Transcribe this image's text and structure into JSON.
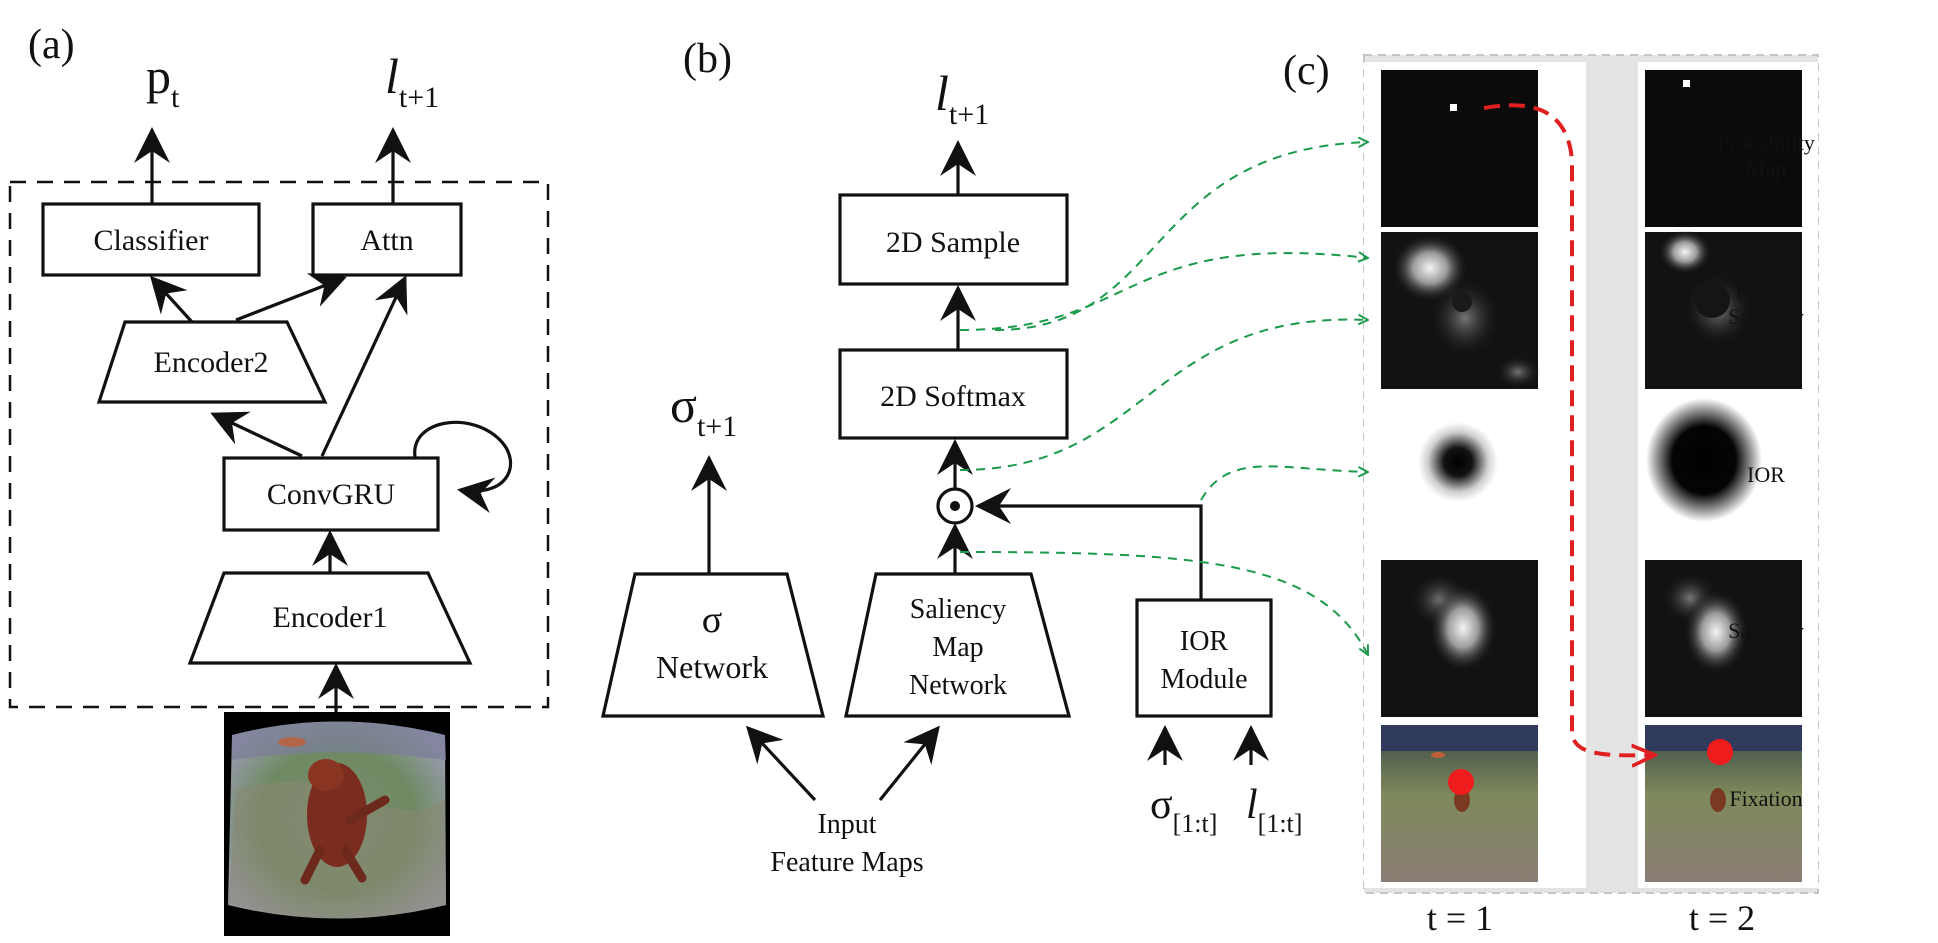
{
  "panels": {
    "a": {
      "letter": "(a)"
    },
    "b": {
      "letter": "(b)"
    },
    "c": {
      "letter": "(c)"
    }
  },
  "panel_a": {
    "out_p": "p",
    "out_p_sub": "t",
    "out_l": "l",
    "out_l_sub": "t+1",
    "classifier": "Classifier",
    "attn": "Attn",
    "encoder2": "Encoder2",
    "convgru": "ConvGRU",
    "encoder1": "Encoder1"
  },
  "panel_b": {
    "out_l": "l",
    "out_l_sub": "t+1",
    "sample": "2D Sample",
    "softmax": "2D Softmax",
    "odot": "⊙",
    "sigma_out": "σ",
    "sigma_out_sub": "t+1",
    "sigma_net_1": "σ",
    "sigma_net_2": "Network",
    "saliency_1": "Saliency",
    "saliency_2": "Map",
    "saliency_3": "Network",
    "ior_1": "IOR",
    "ior_2": "Module",
    "input_1": "Input",
    "input_2": "Feature Maps",
    "in_sigma": "σ",
    "in_sigma_sub": "[1:t]",
    "in_l": "l",
    "in_l_sub": "[1:t]"
  },
  "panel_c": {
    "row_labels": [
      [
        "Probability",
        "Map"
      ],
      [
        "IOR &",
        "Saliency",
        "Map"
      ],
      [
        "IOR"
      ],
      [
        "Saliency",
        "Map"
      ],
      [
        "Fixation"
      ]
    ],
    "col_labels": [
      "t = 1",
      "t = 2"
    ]
  },
  "colors": {
    "ink": "#111111",
    "green_arrow": "#1a9a4a",
    "red_path": "#e02020",
    "panel_bg": "#e4e4e4"
  }
}
